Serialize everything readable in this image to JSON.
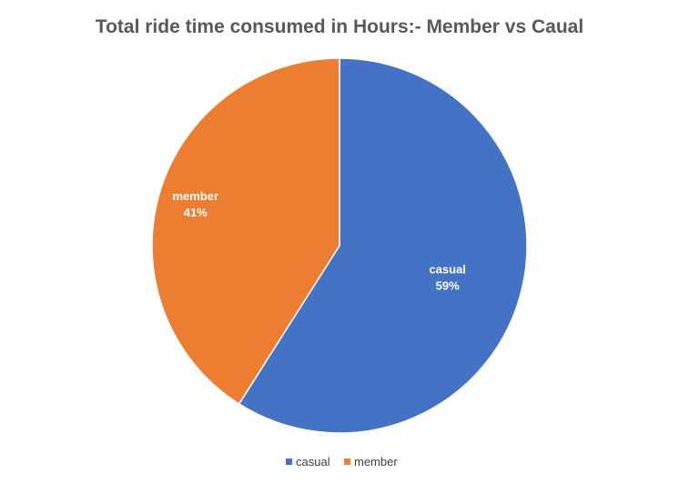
{
  "chart_data": {
    "type": "pie",
    "title": "Total ride time consumed in Hours:- Member vs Caual",
    "categories": [
      "casual",
      "member"
    ],
    "values": [
      59,
      41
    ],
    "value_labels": [
      "59%",
      "41%"
    ],
    "colors": [
      "#4472C4",
      "#ED7D31"
    ],
    "legend_position": "bottom",
    "start_angle": "12 o'clock",
    "direction": "clockwise"
  }
}
